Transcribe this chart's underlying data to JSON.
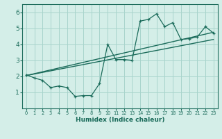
{
  "xlabel": "Humidex (Indice chaleur)",
  "bg_color": "#d4eee8",
  "grid_color": "#a8d4cc",
  "line_color": "#1a6b5a",
  "xlim": [
    -0.5,
    23.5
  ],
  "ylim": [
    0.0,
    6.5
  ],
  "yticks": [
    1,
    2,
    3,
    4,
    5,
    6
  ],
  "xticks": [
    0,
    1,
    2,
    3,
    4,
    5,
    6,
    7,
    8,
    9,
    10,
    11,
    12,
    13,
    14,
    15,
    16,
    17,
    18,
    19,
    20,
    21,
    22,
    23
  ],
  "zigzag_x": [
    0,
    1,
    2,
    3,
    4,
    5,
    6,
    7,
    8,
    9,
    10,
    11,
    12,
    13,
    14,
    15,
    16,
    17,
    18,
    19,
    20,
    21,
    22,
    23
  ],
  "zigzag_y": [
    2.1,
    1.9,
    1.75,
    1.3,
    1.4,
    1.3,
    0.75,
    0.8,
    0.8,
    1.55,
    4.0,
    3.05,
    3.05,
    3.0,
    5.45,
    5.55,
    5.9,
    5.1,
    5.35,
    4.3,
    4.35,
    4.45,
    5.1,
    4.7
  ],
  "trend1_x": [
    0,
    23
  ],
  "trend1_y": [
    2.05,
    4.3
  ],
  "trend2_x": [
    0,
    23
  ],
  "trend2_y": [
    2.05,
    4.75
  ]
}
